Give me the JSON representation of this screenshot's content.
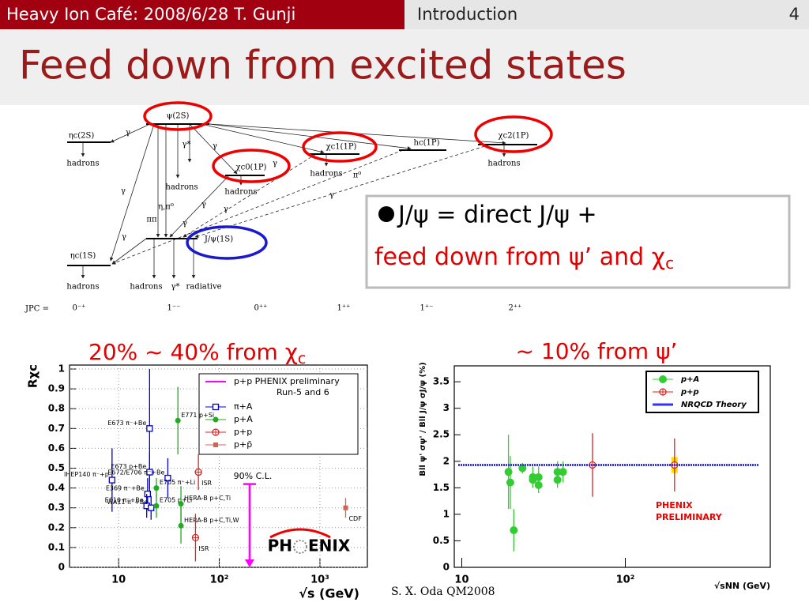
{
  "header": {
    "left": "Heavy Ion Café: 2008/6/28 T. Gunji",
    "section": "Introduction",
    "page": "4"
  },
  "title": "Feed down from excited states",
  "diagram": {
    "states": [
      "ψ(2S)",
      "ηc(2S)",
      "χc0(1P)",
      "χc1(1P)",
      "hc(1P)",
      "χc2(1P)",
      "J/ψ(1S)",
      "ηc(1S)"
    ],
    "labels": [
      "hadrons",
      "hadrons",
      "hadrons",
      "hadrons",
      "hadrons",
      "hadrons",
      "hadrons",
      "γ*",
      "γ*",
      "radiative",
      "η,π⁰",
      "ππ",
      "π⁰",
      "γ",
      "γ",
      "γ",
      "γ",
      "γ",
      "γ",
      "γ",
      "γ",
      "γ"
    ],
    "jpc_label": "JPC =",
    "jpc": [
      "0⁻⁺",
      "1⁻⁻",
      "0⁺⁺",
      "1⁺⁺",
      "1⁺⁻",
      "2⁺⁺"
    ]
  },
  "bullet": {
    "line1": "J/ψ = direct J/ψ +",
    "line2": "feed down from ψ’ and χ",
    "line2_sub": "c"
  },
  "captions": {
    "left": "20% ~ 40%  from χ",
    "left_sub": "c",
    "right": "~ 10%  from ψ’"
  },
  "credit": "S. X. Oda QM2008",
  "chart_data": [
    {
      "type": "scatter",
      "ylabel": "Rχc",
      "xlabel": "√s (GeV)",
      "xlog": true,
      "xlim": [
        3.25,
        2960
      ],
      "ylim": [
        0,
        1.02
      ],
      "xticks": [
        10,
        {
          "value": 100,
          "label": "10²"
        },
        {
          "value": 1000,
          "label": "10³"
        }
      ],
      "yticks": [
        0,
        0.1,
        0.2,
        0.3,
        0.4,
        0.5,
        0.6,
        0.7,
        0.8,
        0.9,
        1
      ],
      "grid": true,
      "series": [
        {
          "name": "p+p PHENIX preliminary",
          "color": "#ff00ff",
          "marker": "arrow",
          "x": [
            200
          ],
          "values": [
            0.42
          ]
        },
        {
          "name": "π+A",
          "color": "#0000cc",
          "marker": "open-square",
          "x": [
            8.6,
            20.3,
            20.3,
            30.8,
            19.4,
            19.0,
            21.0
          ],
          "values": [
            0.44,
            0.7,
            0.48,
            0.45,
            0.37,
            0.31,
            0.3
          ],
          "errors": [
            0.16,
            0.3,
            0.1,
            0.1,
            0.08,
            0.06,
            0.06
          ],
          "point_labels": [
            "IHEP140 π⁻+p",
            "E673 π⁻+Be",
            "E673 p+Be",
            "E672/E706 π⁻+Be",
            "E369 π⁻+Be",
            "E610 π⁻+Be",
            "WA11 π⁻+Be"
          ]
        },
        {
          "name": "p+A",
          "color": "#22aa22",
          "marker": "circle",
          "x": [
            38.8,
            23.7,
            23.7,
            41.6,
            41.6
          ],
          "values": [
            0.74,
            0.4,
            0.31,
            0.32,
            0.21
          ],
          "errors": [
            0.17,
            0.05,
            0.06,
            0.09,
            0.09
          ],
          "point_labels": [
            "E771 p+Si",
            "E705 π⁺+Li",
            "E705 p+Li",
            "HERA-B p+C,Ti",
            "HERA-B p+C,Ti,W"
          ]
        },
        {
          "name": "p+p",
          "color": "#dd2222",
          "marker": "open-cross-circle",
          "x": [
            62,
            58
          ],
          "values": [
            0.48,
            0.15
          ],
          "errors": [
            0.09,
            0.12
          ],
          "point_labels": [
            "ISR",
            "ISR"
          ]
        },
        {
          "name": "p+p̄",
          "color": "#cc6655",
          "marker": "filled-square",
          "x": [
            1800
          ],
          "values": [
            0.3
          ],
          "errors": [
            0.05
          ],
          "point_labels": [
            "CDF"
          ]
        }
      ],
      "legend_note": "Run-5 and 6",
      "annotations": [
        "90% C.L."
      ],
      "logo": [
        "PH",
        "ENIX"
      ]
    },
    {
      "type": "scatter",
      "ylabel": "Bll ψ' σψ' / Bll J/ψ σJ/ψ (%)",
      "xlabel": "√sNN (GeV)",
      "xlog": true,
      "xlim": [
        9,
        770
      ],
      "ylim": [
        0,
        3.8
      ],
      "xticks": [
        10,
        {
          "value": 100,
          "label": "10²"
        }
      ],
      "yticks": [
        0,
        0.5,
        1,
        1.5,
        2,
        2.5,
        3,
        3.5
      ],
      "grid": false,
      "series": [
        {
          "name": "p+A",
          "color": "#33cc33",
          "marker": "circle",
          "x": [
            19.3,
            19.8,
            20.8,
            23.5,
            27.2,
            27.2,
            29.5,
            29.5,
            38.5,
            38.5,
            41.6
          ],
          "values": [
            1.8,
            1.6,
            0.7,
            1.87,
            1.7,
            1.65,
            1.7,
            1.55,
            1.8,
            1.65,
            1.8
          ],
          "errors": [
            0.7,
            0.5,
            0.4,
            0.1,
            0.2,
            0.15,
            0.2,
            0.15,
            0.2,
            0.15,
            0.2
          ]
        },
        {
          "name": "p+p",
          "color": "#dd2222",
          "marker": "open-cross-circle",
          "x": [
            63,
            200
          ],
          "values": [
            1.93,
            1.93
          ],
          "errors": [
            0.6,
            0.5
          ],
          "syst_errors": [
            null,
            0.15
          ]
        },
        {
          "name": "NRQCD Theory",
          "color": "#3333ff",
          "marker": "band",
          "values": [
            1.93
          ]
        }
      ],
      "annotations": [
        "PHENIX",
        "PRELIMINARY"
      ]
    }
  ]
}
